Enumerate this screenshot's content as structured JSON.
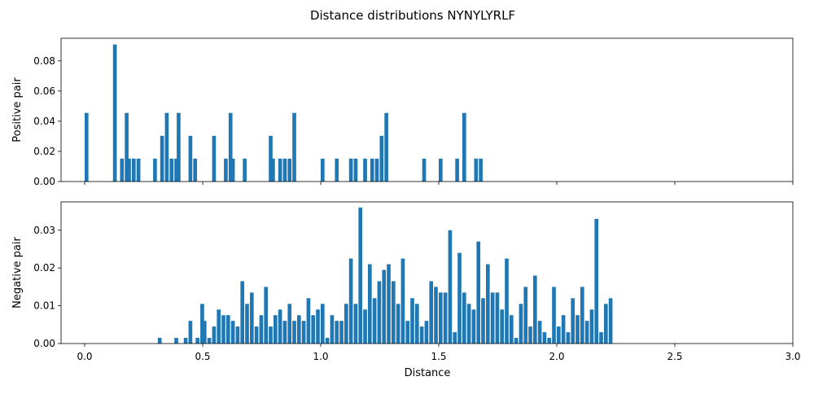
{
  "chart_data": {
    "type": "bar",
    "title": "Distance distributions NYNYLYRLF",
    "xlabel": "Distance",
    "xlim": [
      -0.1,
      3.0
    ],
    "xticks": [
      "0.0",
      "0.5",
      "1.0",
      "1.5",
      "2.0",
      "2.5",
      "3.0"
    ],
    "bar_color": "#1f77b4",
    "panels": [
      {
        "name": "positive",
        "ylabel": "Positive pair",
        "ylim": [
          0,
          0.095
        ],
        "yticks": [
          "0.00",
          "0.02",
          "0.04",
          "0.06",
          "0.08"
        ],
        "bins": [
          [
            0.0,
            0.0455
          ],
          [
            0.12,
            0.0909
          ],
          [
            0.15,
            0.0152
          ],
          [
            0.17,
            0.0455
          ],
          [
            0.18,
            0.0152
          ],
          [
            0.2,
            0.0152
          ],
          [
            0.22,
            0.0152
          ],
          [
            0.29,
            0.0152
          ],
          [
            0.32,
            0.0303
          ],
          [
            0.34,
            0.0455
          ],
          [
            0.36,
            0.0152
          ],
          [
            0.38,
            0.0152
          ],
          [
            0.39,
            0.0455
          ],
          [
            0.44,
            0.0303
          ],
          [
            0.46,
            0.0152
          ],
          [
            0.54,
            0.0303
          ],
          [
            0.59,
            0.0152
          ],
          [
            0.61,
            0.0455
          ],
          [
            0.62,
            0.0152
          ],
          [
            0.67,
            0.0152
          ],
          [
            0.78,
            0.0303
          ],
          [
            0.79,
            0.0152
          ],
          [
            0.82,
            0.0152
          ],
          [
            0.84,
            0.0152
          ],
          [
            0.86,
            0.0152
          ],
          [
            0.88,
            0.0455
          ],
          [
            1.0,
            0.0152
          ],
          [
            1.06,
            0.0152
          ],
          [
            1.12,
            0.0152
          ],
          [
            1.14,
            0.0152
          ],
          [
            1.18,
            0.0152
          ],
          [
            1.21,
            0.0152
          ],
          [
            1.23,
            0.0152
          ],
          [
            1.25,
            0.0303
          ],
          [
            1.27,
            0.0455
          ],
          [
            1.43,
            0.0152
          ],
          [
            1.5,
            0.0152
          ],
          [
            1.57,
            0.0152
          ],
          [
            1.6,
            0.0455
          ],
          [
            1.65,
            0.0152
          ],
          [
            1.67,
            0.0152
          ]
        ]
      },
      {
        "name": "negative",
        "ylabel": "Negative pair",
        "ylim": [
          0,
          0.0375
        ],
        "yticks": [
          "0.00",
          "0.01",
          "0.02",
          "0.03"
        ],
        "bins": [
          [
            0.31,
            0.0015
          ],
          [
            0.38,
            0.0015
          ],
          [
            0.42,
            0.0015
          ],
          [
            0.44,
            0.006
          ],
          [
            0.47,
            0.0015
          ],
          [
            0.49,
            0.0105
          ],
          [
            0.5,
            0.006
          ],
          [
            0.52,
            0.0015
          ],
          [
            0.54,
            0.0045
          ],
          [
            0.56,
            0.009
          ],
          [
            0.58,
            0.0075
          ],
          [
            0.6,
            0.0075
          ],
          [
            0.62,
            0.006
          ],
          [
            0.64,
            0.0045
          ],
          [
            0.66,
            0.0165
          ],
          [
            0.68,
            0.0105
          ],
          [
            0.7,
            0.0135
          ],
          [
            0.72,
            0.0045
          ],
          [
            0.74,
            0.0075
          ],
          [
            0.76,
            0.015
          ],
          [
            0.78,
            0.0045
          ],
          [
            0.8,
            0.0075
          ],
          [
            0.82,
            0.009
          ],
          [
            0.84,
            0.006
          ],
          [
            0.86,
            0.0105
          ],
          [
            0.88,
            0.006
          ],
          [
            0.9,
            0.0075
          ],
          [
            0.92,
            0.006
          ],
          [
            0.94,
            0.012
          ],
          [
            0.96,
            0.0075
          ],
          [
            0.98,
            0.009
          ],
          [
            1.0,
            0.0105
          ],
          [
            1.02,
            0.0015
          ],
          [
            1.04,
            0.0075
          ],
          [
            1.06,
            0.006
          ],
          [
            1.08,
            0.006
          ],
          [
            1.1,
            0.0105
          ],
          [
            1.12,
            0.0225
          ],
          [
            1.14,
            0.0105
          ],
          [
            1.16,
            0.036
          ],
          [
            1.18,
            0.009
          ],
          [
            1.2,
            0.021
          ],
          [
            1.22,
            0.012
          ],
          [
            1.24,
            0.0165
          ],
          [
            1.26,
            0.0195
          ],
          [
            1.28,
            0.021
          ],
          [
            1.3,
            0.0165
          ],
          [
            1.32,
            0.0105
          ],
          [
            1.34,
            0.0225
          ],
          [
            1.36,
            0.006
          ],
          [
            1.38,
            0.012
          ],
          [
            1.4,
            0.0105
          ],
          [
            1.42,
            0.0045
          ],
          [
            1.44,
            0.006
          ],
          [
            1.46,
            0.0165
          ],
          [
            1.48,
            0.015
          ],
          [
            1.5,
            0.0135
          ],
          [
            1.52,
            0.0135
          ],
          [
            1.54,
            0.03
          ],
          [
            1.56,
            0.003
          ],
          [
            1.58,
            0.024
          ],
          [
            1.6,
            0.0135
          ],
          [
            1.62,
            0.0105
          ],
          [
            1.64,
            0.009
          ],
          [
            1.66,
            0.027
          ],
          [
            1.68,
            0.012
          ],
          [
            1.7,
            0.021
          ],
          [
            1.72,
            0.0135
          ],
          [
            1.74,
            0.0135
          ],
          [
            1.76,
            0.009
          ],
          [
            1.78,
            0.0225
          ],
          [
            1.8,
            0.0075
          ],
          [
            1.82,
            0.0015
          ],
          [
            1.84,
            0.0105
          ],
          [
            1.86,
            0.015
          ],
          [
            1.88,
            0.0045
          ],
          [
            1.9,
            0.018
          ],
          [
            1.92,
            0.006
          ],
          [
            1.94,
            0.003
          ],
          [
            1.96,
            0.0015
          ],
          [
            1.98,
            0.015
          ],
          [
            2.0,
            0.0045
          ],
          [
            2.02,
            0.0075
          ],
          [
            2.04,
            0.003
          ],
          [
            2.06,
            0.012
          ],
          [
            2.08,
            0.0075
          ],
          [
            2.1,
            0.015
          ],
          [
            2.12,
            0.006
          ],
          [
            2.14,
            0.009
          ],
          [
            2.16,
            0.033
          ],
          [
            2.18,
            0.003
          ],
          [
            2.2,
            0.0105
          ],
          [
            2.22,
            0.012
          ]
        ]
      }
    ]
  }
}
